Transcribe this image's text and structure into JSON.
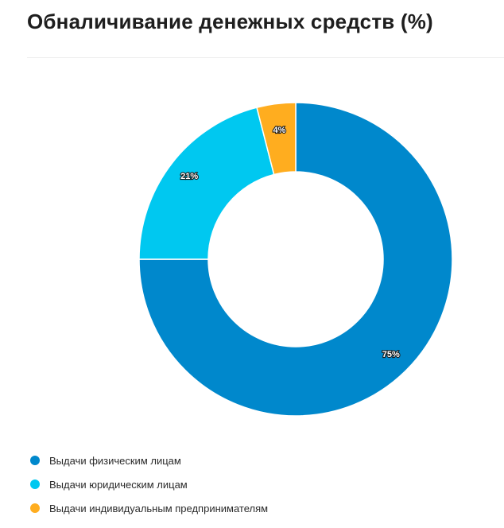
{
  "title": "Обналичивание денежных средств (%)",
  "chart_data": {
    "type": "pie",
    "variant": "donut",
    "categories": [
      "Выдачи физическим лицам",
      "Выдачи юридическим лицам",
      "Выдачи индивидуальным предпринимателям"
    ],
    "values": [
      75,
      21,
      4
    ],
    "data_labels": [
      "75%",
      "21%",
      "4%"
    ],
    "colors": [
      "#0088cc",
      "#00c8f0",
      "#ffad1f"
    ],
    "legend_position": "bottom-left",
    "order": "clockwise-from-top"
  }
}
